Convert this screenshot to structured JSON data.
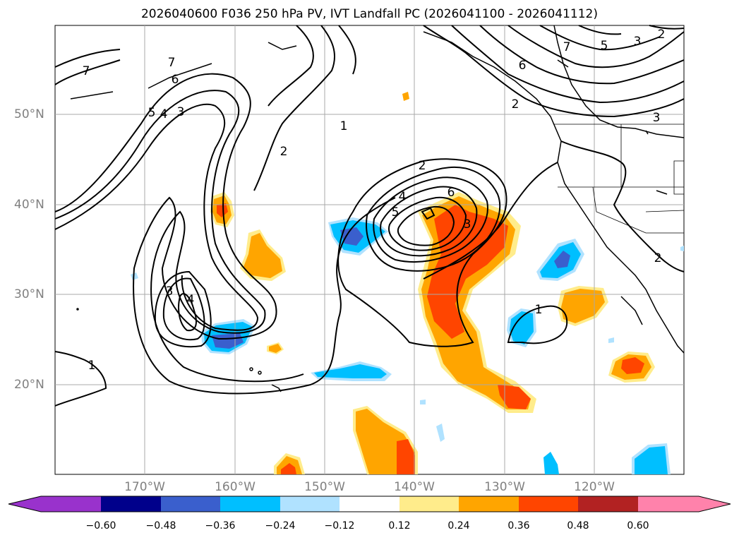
{
  "title": "2026040600 F036 250 hPa PV, IVT Landfall PC (2026041100 - 2026041112)",
  "latitude_labels": [
    "50°N",
    "40°N",
    "30°N",
    "20°N"
  ],
  "longitude_labels": [
    "170°W",
    "160°W",
    "150°W",
    "140°W",
    "130°W",
    "120°W"
  ],
  "colorbar": {
    "ticks": [
      "−0.60",
      "−0.48",
      "−0.36",
      "−0.24",
      "−0.12",
      "0.12",
      "0.24",
      "0.36",
      "0.48",
      "0.60"
    ],
    "colors": [
      "#9932cc",
      "#00008b",
      "#3a5fcd",
      "#00bfff",
      "#b0e2ff",
      "#ffffff",
      "#ffec8b",
      "#ffa500",
      "#ff4500",
      "#b22222",
      "#ff82ab"
    ]
  },
  "contour_labels": [
    "7",
    "7",
    "6",
    "5",
    "4",
    "3",
    "1",
    "2",
    "2",
    "5",
    "4",
    "6",
    "3",
    "3",
    "4",
    "1",
    "1",
    "2",
    "6",
    "7",
    "5",
    "3",
    "2",
    "3",
    "2"
  ],
  "fill_colors": {
    "orange": "#ffa500",
    "red": "#ff4500",
    "yellow": "#ffec8b",
    "cyan": "#00bfff",
    "lightblue": "#b0e2ff",
    "blue": "#3a5fcd"
  }
}
